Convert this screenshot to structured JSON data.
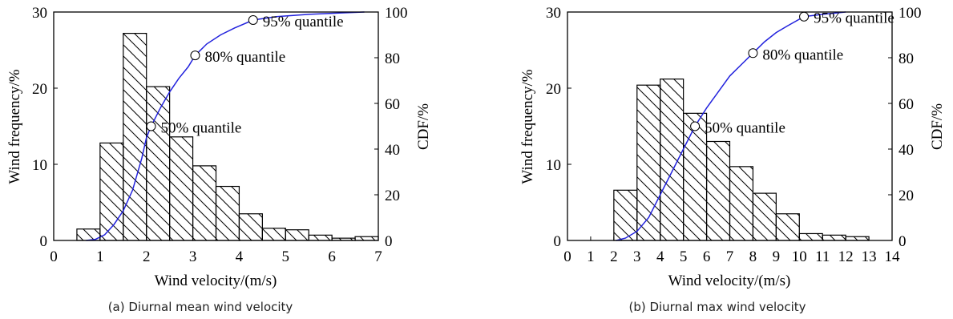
{
  "chart_data": [
    {
      "type": "bar",
      "caption": "(a) Diurnal mean wind velocity",
      "xlabel": "Wind velocity/(m/s)",
      "ylabel": "Wind frequency/%",
      "y2label": "CDF/%",
      "xlim": [
        0,
        7
      ],
      "ylim": [
        0,
        30
      ],
      "y2lim": [
        0,
        100
      ],
      "xticks": [
        "0",
        "1",
        "2",
        "3",
        "4",
        "5",
        "6",
        "7"
      ],
      "yticks": [
        "0",
        "10",
        "20",
        "30"
      ],
      "y2ticks": [
        "0",
        "20",
        "40",
        "60",
        "80",
        "100"
      ],
      "bins": [
        [
          0.5,
          1.0
        ],
        [
          1.0,
          1.5
        ],
        [
          1.5,
          2.0
        ],
        [
          2.0,
          2.5
        ],
        [
          2.5,
          3.0
        ],
        [
          3.0,
          3.5
        ],
        [
          3.5,
          4.0
        ],
        [
          4.0,
          4.5
        ],
        [
          4.5,
          5.0
        ],
        [
          5.0,
          5.5
        ],
        [
          5.5,
          6.0
        ],
        [
          6.0,
          6.5
        ],
        [
          6.5,
          7.0
        ]
      ],
      "values": [
        1.5,
        12.8,
        27.2,
        20.2,
        13.6,
        9.8,
        7.1,
        3.5,
        1.6,
        1.4,
        0.7,
        0.3,
        0.5
      ],
      "cdf_color": "#2222dd",
      "cdf": [
        [
          0.7,
          0
        ],
        [
          0.9,
          0.5
        ],
        [
          1.1,
          2.5
        ],
        [
          1.3,
          7
        ],
        [
          1.5,
          13
        ],
        [
          1.7,
          22
        ],
        [
          1.9,
          36
        ],
        [
          2.0,
          45
        ],
        [
          2.1,
          50
        ],
        [
          2.3,
          58
        ],
        [
          2.5,
          65
        ],
        [
          2.7,
          71
        ],
        [
          2.9,
          76
        ],
        [
          3.05,
          81
        ],
        [
          3.3,
          86
        ],
        [
          3.6,
          90
        ],
        [
          3.9,
          93
        ],
        [
          4.3,
          96.5
        ],
        [
          4.8,
          98
        ],
        [
          5.5,
          99
        ],
        [
          6.2,
          99.6
        ],
        [
          6.7,
          100
        ]
      ],
      "quantiles": [
        {
          "x": 2.1,
          "y": 50,
          "label": "50% quantile"
        },
        {
          "x": 3.05,
          "y": 81,
          "label": "80% quantile"
        },
        {
          "x": 4.3,
          "y": 96.5,
          "label": "95% quantile"
        }
      ],
      "grid": false
    },
    {
      "type": "bar",
      "caption": "(b) Diurnal max wind velocity",
      "xlabel": "Wind velocity/(m/s)",
      "ylabel": "Wind frequency/%",
      "y2label": "CDF/%",
      "xlim": [
        0,
        14
      ],
      "ylim": [
        0,
        30
      ],
      "y2lim": [
        0,
        100
      ],
      "xticks": [
        "0",
        "1",
        "2",
        "3",
        "4",
        "5",
        "6",
        "7",
        "8",
        "9",
        "10",
        "11",
        "12",
        "13",
        "14"
      ],
      "yticks": [
        "0",
        "10",
        "20",
        "30"
      ],
      "y2ticks": [
        "0",
        "20",
        "40",
        "60",
        "80",
        "100"
      ],
      "bins": [
        [
          2,
          3
        ],
        [
          3,
          4
        ],
        [
          4,
          5
        ],
        [
          5,
          6
        ],
        [
          6,
          7
        ],
        [
          7,
          8
        ],
        [
          8,
          9
        ],
        [
          9,
          10
        ],
        [
          10,
          11
        ],
        [
          11,
          12
        ],
        [
          12,
          13
        ]
      ],
      "values": [
        6.6,
        20.4,
        21.2,
        16.7,
        13.0,
        9.7,
        6.2,
        3.5,
        0.9,
        0.7,
        0.5
      ],
      "cdf_color": "#2222dd",
      "cdf": [
        [
          2.1,
          0
        ],
        [
          2.5,
          1
        ],
        [
          3.0,
          4
        ],
        [
          3.5,
          10
        ],
        [
          4.0,
          20
        ],
        [
          4.5,
          30
        ],
        [
          5.0,
          40
        ],
        [
          5.5,
          50
        ],
        [
          6.0,
          58
        ],
        [
          6.5,
          65
        ],
        [
          7.0,
          72
        ],
        [
          7.5,
          77
        ],
        [
          8.0,
          82
        ],
        [
          8.5,
          87
        ],
        [
          9.0,
          91
        ],
        [
          9.5,
          94
        ],
        [
          10.2,
          98
        ],
        [
          11.0,
          99
        ],
        [
          12.0,
          100
        ]
      ],
      "quantiles": [
        {
          "x": 5.5,
          "y": 50,
          "label": "50% quantile"
        },
        {
          "x": 8.0,
          "y": 82,
          "label": "80% quantile"
        },
        {
          "x": 10.2,
          "y": 98,
          "label": "95% quantile"
        }
      ],
      "grid": false
    }
  ]
}
